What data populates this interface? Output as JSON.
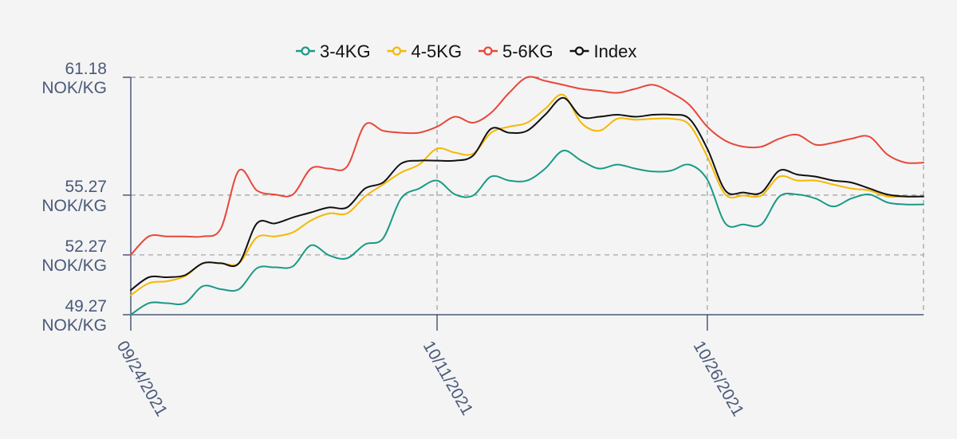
{
  "chart_data": {
    "type": "line",
    "title": "",
    "xlabel": "",
    "ylabel": "",
    "legend_position": "top-center",
    "grid": true,
    "x_dates": [
      "09/24/2021",
      "09/25/2021",
      "09/26/2021",
      "09/27/2021",
      "09/28/2021",
      "09/29/2021",
      "09/30/2021",
      "10/01/2021",
      "10/02/2021",
      "10/03/2021",
      "10/04/2021",
      "10/05/2021",
      "10/06/2021",
      "10/07/2021",
      "10/08/2021",
      "10/09/2021",
      "10/10/2021",
      "10/11/2021",
      "10/12/2021",
      "10/13/2021",
      "10/14/2021",
      "10/15/2021",
      "10/16/2021",
      "10/17/2021",
      "10/18/2021",
      "10/19/2021",
      "10/20/2021",
      "10/21/2021",
      "10/22/2021",
      "10/23/2021",
      "10/24/2021",
      "10/25/2021",
      "10/26/2021",
      "10/27/2021",
      "10/28/2021",
      "10/29/2021",
      "10/30/2021",
      "10/31/2021",
      "11/01/2021",
      "11/02/2021",
      "11/03/2021",
      "11/04/2021",
      "11/05/2021",
      "11/06/2021",
      "11/07/2021"
    ],
    "x_tick_labels": [
      "09/24/2021",
      "10/11/2021",
      "10/26/2021"
    ],
    "y_tick_values": [
      49.27,
      52.27,
      55.27,
      61.18
    ],
    "y_tick_labels": [
      "49.27",
      "52.27",
      "55.27",
      "61.18"
    ],
    "y_tick_unit": "NOK/KG",
    "ylim": [
      49.27,
      61.18
    ],
    "series": [
      {
        "name": "3-4KG",
        "color": "#1a9a86",
        "values": [
          49.27,
          49.85,
          49.85,
          49.85,
          50.7,
          50.55,
          50.55,
          51.6,
          51.65,
          51.7,
          52.75,
          52.25,
          52.1,
          52.8,
          53.1,
          55.1,
          55.6,
          56.0,
          55.3,
          55.25,
          56.2,
          56.0,
          56.0,
          56.6,
          57.5,
          57.0,
          56.6,
          56.8,
          56.6,
          56.45,
          56.5,
          56.8,
          56.05,
          53.85,
          53.8,
          53.8,
          55.2,
          55.3,
          55.1,
          54.7,
          55.1,
          55.3,
          54.9,
          54.8,
          54.8
        ]
      },
      {
        "name": "4-5KG",
        "color": "#f5b800",
        "values": [
          50.25,
          50.85,
          50.95,
          51.2,
          51.85,
          51.85,
          51.85,
          53.15,
          53.2,
          53.4,
          54.0,
          54.35,
          54.35,
          55.2,
          55.8,
          56.4,
          56.8,
          57.6,
          57.4,
          57.35,
          58.4,
          58.7,
          58.9,
          59.6,
          60.3,
          58.9,
          58.5,
          59.1,
          59.05,
          59.1,
          59.1,
          58.8,
          57.2,
          55.3,
          55.25,
          55.25,
          56.2,
          56.0,
          56.0,
          55.8,
          55.6,
          55.5,
          55.2,
          55.2,
          55.2
        ]
      },
      {
        "name": "5-6KG",
        "color": "#e8473a",
        "values": [
          52.27,
          53.2,
          53.2,
          53.2,
          53.2,
          53.6,
          56.5,
          55.5,
          55.3,
          55.3,
          56.6,
          56.6,
          56.7,
          58.8,
          58.5,
          58.4,
          58.4,
          58.7,
          59.2,
          58.9,
          59.4,
          60.4,
          61.18,
          61.0,
          60.8,
          60.6,
          60.5,
          60.4,
          60.6,
          60.8,
          60.4,
          59.8,
          58.7,
          58.0,
          57.7,
          57.7,
          58.1,
          58.3,
          57.8,
          57.9,
          58.1,
          58.2,
          57.3,
          56.9,
          56.9
        ]
      },
      {
        "name": "Index",
        "color": "#111111",
        "values": [
          50.5,
          51.15,
          51.15,
          51.25,
          51.85,
          51.85,
          51.85,
          53.85,
          53.85,
          54.15,
          54.4,
          54.65,
          54.65,
          55.6,
          55.9,
          56.85,
          57.0,
          57.0,
          57.0,
          57.25,
          58.6,
          58.4,
          58.5,
          59.3,
          60.15,
          59.2,
          59.2,
          59.3,
          59.2,
          59.3,
          59.3,
          59.1,
          57.6,
          55.5,
          55.4,
          55.4,
          56.5,
          56.3,
          56.2,
          56.0,
          55.9,
          55.6,
          55.3,
          55.2,
          55.2
        ]
      }
    ]
  }
}
